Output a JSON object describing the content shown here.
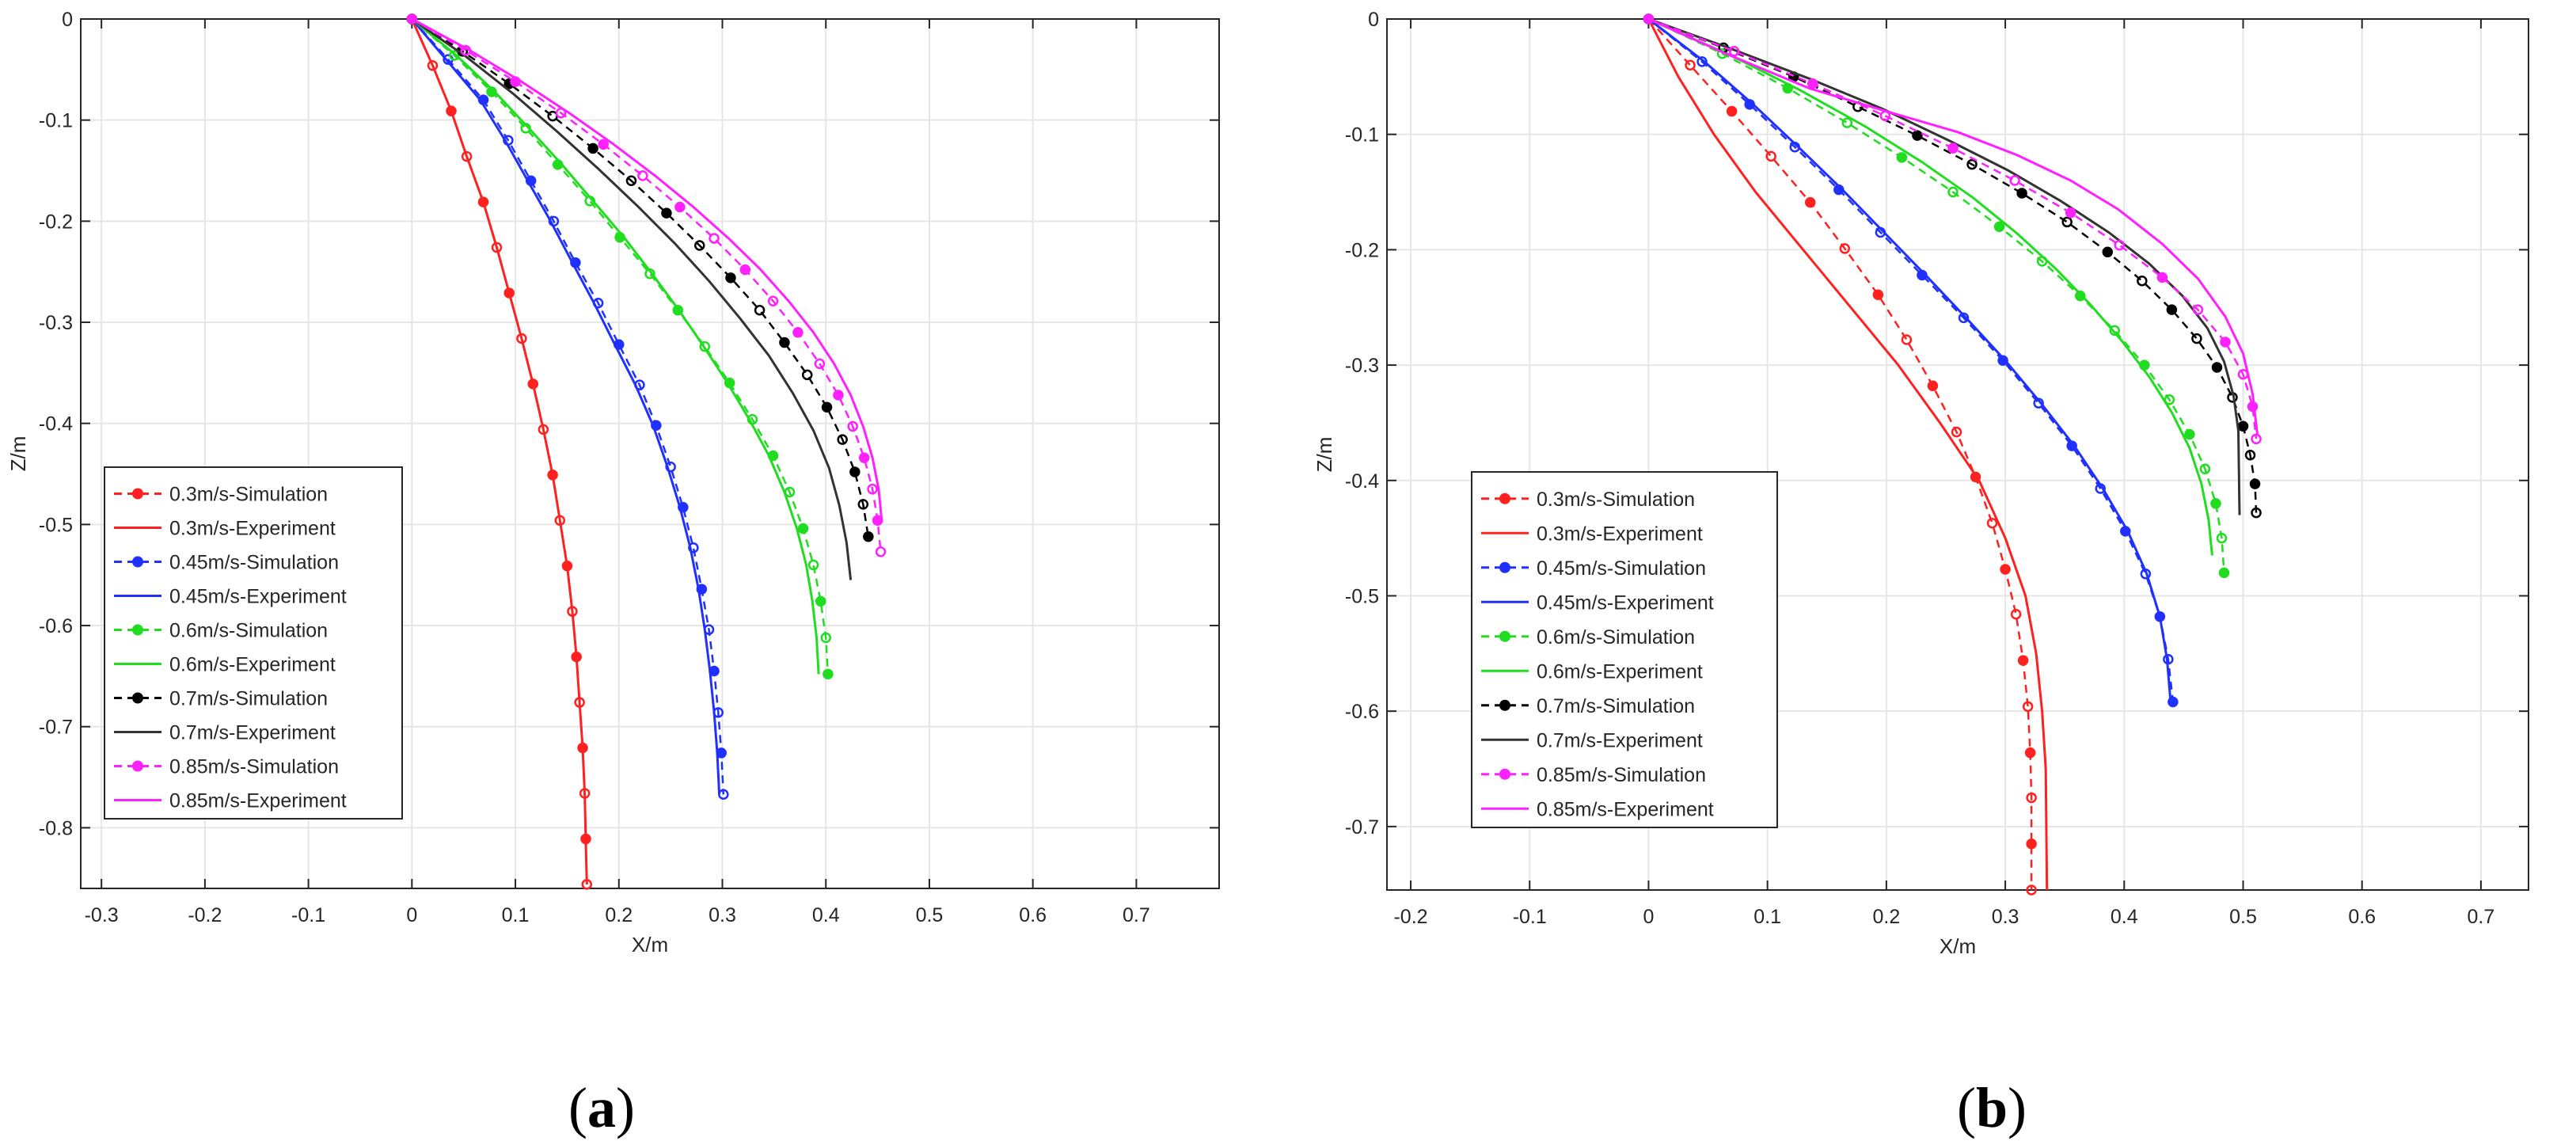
{
  "chart_data": [
    {
      "type": "line",
      "panel_label": "a",
      "xlabel": "X/m",
      "ylabel": "Z/m",
      "xlim": [
        -0.32,
        0.78
      ],
      "ylim": [
        -0.86,
        0
      ],
      "xticks": [
        -0.3,
        -0.2,
        -0.1,
        0,
        0.1,
        0.2,
        0.3,
        0.4,
        0.5,
        0.6,
        0.7
      ],
      "yticks": [
        0,
        -0.1,
        -0.2,
        -0.3,
        -0.4,
        -0.5,
        -0.6,
        -0.7,
        -0.8
      ],
      "grid": true,
      "legend_position": "bottom-left",
      "legend_order": [
        "sim_0.3",
        "exp_0.3",
        "sim_0.45",
        "exp_0.45",
        "sim_0.6",
        "exp_0.6",
        "sim_0.7",
        "exp_0.7",
        "sim_0.85",
        "exp_0.85"
      ],
      "series": [
        {
          "id": "sim_0.3",
          "name": "0.3m/s-Simulation",
          "color": "#ff2020",
          "style": "dashed-marker",
          "x": [
            0,
            0.02,
            0.038,
            0.053,
            0.069,
            0.082,
            0.094,
            0.106,
            0.117,
            0.127,
            0.136,
            0.143,
            0.15,
            0.155,
            0.159,
            0.162,
            0.165,
            0.167,
            0.168,
            0.169
          ],
          "y": [
            0,
            -0.046,
            -0.091,
            -0.136,
            -0.181,
            -0.226,
            -0.271,
            -0.316,
            -0.361,
            -0.406,
            -0.451,
            -0.496,
            -0.541,
            -0.586,
            -0.631,
            -0.676,
            -0.721,
            -0.766,
            -0.811,
            -0.856
          ]
        },
        {
          "id": "exp_0.3",
          "name": "0.3m/s-Experiment",
          "color": "#ff2020",
          "style": "solid",
          "x": [
            0,
            0.02,
            0.038,
            0.053,
            0.069,
            0.082,
            0.094,
            0.106,
            0.117,
            0.127,
            0.136,
            0.143,
            0.15,
            0.155,
            0.159,
            0.162,
            0.165,
            0.167,
            0.168,
            0.169
          ],
          "y": [
            0,
            -0.046,
            -0.091,
            -0.136,
            -0.181,
            -0.226,
            -0.271,
            -0.316,
            -0.361,
            -0.406,
            -0.451,
            -0.496,
            -0.541,
            -0.586,
            -0.631,
            -0.676,
            -0.721,
            -0.766,
            -0.811,
            -0.856
          ]
        },
        {
          "id": "sim_0.45",
          "name": "0.45m/s-Simulation",
          "color": "#2030ff",
          "style": "dashed-marker",
          "x": [
            0,
            0.035,
            0.069,
            0.093,
            0.115,
            0.137,
            0.158,
            0.18,
            0.2,
            0.22,
            0.236,
            0.25,
            0.262,
            0.272,
            0.28,
            0.287,
            0.292,
            0.296,
            0.299,
            0.301
          ],
          "y": [
            0,
            -0.04,
            -0.08,
            -0.12,
            -0.16,
            -0.2,
            -0.241,
            -0.281,
            -0.322,
            -0.362,
            -0.402,
            -0.443,
            -0.483,
            -0.523,
            -0.564,
            -0.604,
            -0.645,
            -0.686,
            -0.726,
            -0.767
          ]
        },
        {
          "id": "exp_0.45",
          "name": "0.45m/s-Experiment",
          "color": "#2030ff",
          "style": "solid",
          "x": [
            0,
            0.033,
            0.066,
            0.09,
            0.112,
            0.134,
            0.155,
            0.176,
            0.196,
            0.216,
            0.233,
            0.247,
            0.259,
            0.269,
            0.277,
            0.283,
            0.288,
            0.292,
            0.295,
            0.297
          ],
          "y": [
            0,
            -0.04,
            -0.08,
            -0.12,
            -0.16,
            -0.2,
            -0.241,
            -0.281,
            -0.322,
            -0.362,
            -0.402,
            -0.443,
            -0.483,
            -0.523,
            -0.564,
            -0.604,
            -0.645,
            -0.686,
            -0.726,
            -0.767
          ]
        },
        {
          "id": "sim_0.6",
          "name": "0.6m/s-Simulation",
          "color": "#20dd20",
          "style": "dashed-marker",
          "x": [
            0,
            0.041,
            0.077,
            0.11,
            0.141,
            0.172,
            0.201,
            0.23,
            0.257,
            0.283,
            0.307,
            0.329,
            0.349,
            0.365,
            0.378,
            0.388,
            0.395,
            0.4,
            0.402
          ],
          "y": [
            0,
            -0.036,
            -0.072,
            -0.108,
            -0.144,
            -0.18,
            -0.216,
            -0.252,
            -0.288,
            -0.324,
            -0.36,
            -0.396,
            -0.432,
            -0.468,
            -0.504,
            -0.54,
            -0.576,
            -0.612,
            -0.648
          ]
        },
        {
          "id": "exp_0.6",
          "name": "0.6m/s-Experiment",
          "color": "#20dd20",
          "style": "solid",
          "x": [
            0,
            0.043,
            0.08,
            0.113,
            0.145,
            0.175,
            0.205,
            0.232,
            0.258,
            0.282,
            0.305,
            0.326,
            0.345,
            0.36,
            0.372,
            0.381,
            0.387,
            0.391,
            0.393
          ],
          "y": [
            0,
            -0.036,
            -0.072,
            -0.108,
            -0.144,
            -0.18,
            -0.216,
            -0.252,
            -0.288,
            -0.324,
            -0.36,
            -0.396,
            -0.432,
            -0.468,
            -0.504,
            -0.54,
            -0.576,
            -0.612,
            -0.648
          ]
        },
        {
          "id": "sim_0.7",
          "name": "0.7m/s-Simulation",
          "color": "#000000",
          "style": "dashed-marker",
          "x": [
            0,
            0.049,
            0.094,
            0.136,
            0.175,
            0.212,
            0.246,
            0.278,
            0.308,
            0.336,
            0.36,
            0.382,
            0.401,
            0.416,
            0.428,
            0.436,
            0.441
          ],
          "y": [
            0,
            -0.032,
            -0.064,
            -0.096,
            -0.128,
            -0.16,
            -0.192,
            -0.224,
            -0.256,
            -0.288,
            -0.32,
            -0.352,
            -0.384,
            -0.416,
            -0.448,
            -0.48,
            -0.512
          ]
        },
        {
          "id": "exp_0.7",
          "name": "0.7m/s-Experiment",
          "color": "#333333",
          "style": "solid",
          "x": [
            0,
            0.052,
            0.098,
            0.14,
            0.18,
            0.218,
            0.254,
            0.287,
            0.317,
            0.345,
            0.368,
            0.388,
            0.403,
            0.413,
            0.42,
            0.424
          ],
          "y": [
            0,
            -0.037,
            -0.074,
            -0.111,
            -0.148,
            -0.185,
            -0.222,
            -0.259,
            -0.296,
            -0.333,
            -0.37,
            -0.407,
            -0.444,
            -0.481,
            -0.518,
            -0.555
          ]
        },
        {
          "id": "sim_0.85",
          "name": "0.85m/s-Simulation",
          "color": "#ff20ff",
          "style": "dashed-marker",
          "x": [
            0,
            0.052,
            0.1,
            0.144,
            0.185,
            0.223,
            0.259,
            0.292,
            0.322,
            0.349,
            0.373,
            0.394,
            0.412,
            0.426,
            0.437,
            0.445,
            0.45,
            0.453
          ],
          "y": [
            0,
            -0.031,
            -0.062,
            -0.093,
            -0.124,
            -0.155,
            -0.186,
            -0.217,
            -0.248,
            -0.279,
            -0.31,
            -0.341,
            -0.372,
            -0.403,
            -0.434,
            -0.465,
            -0.496,
            -0.527
          ]
        },
        {
          "id": "exp_0.85",
          "name": "0.85m/s-Experiment",
          "color": "#ff20ff",
          "style": "solid",
          "x": [
            0,
            0.056,
            0.106,
            0.152,
            0.195,
            0.235,
            0.272,
            0.306,
            0.337,
            0.364,
            0.388,
            0.408,
            0.424,
            0.436,
            0.445,
            0.451,
            0.454
          ],
          "y": [
            0,
            -0.031,
            -0.062,
            -0.093,
            -0.124,
            -0.155,
            -0.186,
            -0.217,
            -0.248,
            -0.279,
            -0.31,
            -0.341,
            -0.372,
            -0.403,
            -0.434,
            -0.465,
            -0.496
          ]
        }
      ]
    },
    {
      "type": "line",
      "panel_label": "b",
      "xlabel": "X/m",
      "ylabel": "Z/m",
      "xlim": [
        -0.22,
        0.74
      ],
      "ylim": [
        -0.755,
        0
      ],
      "xticks": [
        -0.2,
        -0.1,
        0,
        0.1,
        0.2,
        0.3,
        0.4,
        0.5,
        0.6,
        0.7
      ],
      "yticks": [
        0,
        -0.1,
        -0.2,
        -0.3,
        -0.4,
        -0.5,
        -0.6,
        -0.7
      ],
      "grid": true,
      "legend_position": "bottom-left",
      "legend_order": [
        "sim_0.3",
        "exp_0.3",
        "sim_0.45",
        "exp_0.45",
        "sim_0.6",
        "exp_0.6",
        "sim_0.7",
        "exp_0.7",
        "sim_0.85",
        "exp_0.85"
      ],
      "series": [
        {
          "id": "sim_0.3",
          "name": "0.3m/s-Simulation",
          "color": "#ff2020",
          "style": "dashed-marker",
          "x": [
            0,
            0.035,
            0.07,
            0.103,
            0.136,
            0.165,
            0.193,
            0.217,
            0.239,
            0.259,
            0.275,
            0.289,
            0.3,
            0.309,
            0.315,
            0.319,
            0.321,
            0.322,
            0.322,
            0.322
          ],
          "y": [
            0,
            -0.04,
            -0.08,
            -0.119,
            -0.159,
            -0.199,
            -0.239,
            -0.278,
            -0.318,
            -0.358,
            -0.397,
            -0.437,
            -0.477,
            -0.516,
            -0.556,
            -0.596,
            -0.636,
            -0.675,
            -0.715,
            -0.755
          ]
        },
        {
          "id": "exp_0.3",
          "name": "0.3m/s-Experiment",
          "color": "#ff2020",
          "style": "solid",
          "x": [
            0,
            0.025,
            0.055,
            0.09,
            0.13,
            0.17,
            0.21,
            0.245,
            0.278,
            0.3,
            0.317,
            0.326,
            0.331,
            0.334,
            0.335
          ],
          "y": [
            0,
            -0.05,
            -0.1,
            -0.15,
            -0.2,
            -0.25,
            -0.3,
            -0.35,
            -0.4,
            -0.45,
            -0.5,
            -0.55,
            -0.6,
            -0.65,
            -0.755
          ]
        },
        {
          "id": "sim_0.45",
          "name": "0.45m/s-Simulation",
          "color": "#2030ff",
          "style": "dashed-marker",
          "x": [
            0,
            0.045,
            0.085,
            0.123,
            0.16,
            0.195,
            0.23,
            0.265,
            0.298,
            0.328,
            0.356,
            0.38,
            0.401,
            0.418,
            0.43,
            0.437,
            0.441
          ],
          "y": [
            0,
            -0.037,
            -0.074,
            -0.111,
            -0.148,
            -0.185,
            -0.222,
            -0.259,
            -0.296,
            -0.333,
            -0.37,
            -0.407,
            -0.444,
            -0.481,
            -0.518,
            -0.555,
            -0.592
          ]
        },
        {
          "id": "exp_0.45",
          "name": "0.45m/s-Experiment",
          "color": "#2030ff",
          "style": "solid",
          "x": [
            0,
            0.047,
            0.088,
            0.126,
            0.163,
            0.198,
            0.233,
            0.267,
            0.3,
            0.33,
            0.358,
            0.382,
            0.403,
            0.419,
            0.43,
            0.436,
            0.439
          ],
          "y": [
            0,
            -0.037,
            -0.074,
            -0.111,
            -0.148,
            -0.185,
            -0.222,
            -0.259,
            -0.296,
            -0.333,
            -0.37,
            -0.407,
            -0.444,
            -0.481,
            -0.518,
            -0.555,
            -0.592
          ]
        },
        {
          "id": "sim_0.6",
          "name": "0.6m/s-Simulation",
          "color": "#20dd20",
          "style": "dashed-marker",
          "x": [
            0,
            0.062,
            0.117,
            0.167,
            0.213,
            0.256,
            0.295,
            0.331,
            0.363,
            0.392,
            0.417,
            0.438,
            0.455,
            0.468,
            0.477,
            0.482,
            0.484
          ],
          "y": [
            0,
            -0.03,
            -0.06,
            -0.09,
            -0.12,
            -0.15,
            -0.18,
            -0.21,
            -0.24,
            -0.27,
            -0.3,
            -0.33,
            -0.36,
            -0.39,
            -0.42,
            -0.45,
            -0.48
          ]
        },
        {
          "id": "exp_0.6",
          "name": "0.6m/s-Experiment",
          "color": "#20dd20",
          "style": "solid",
          "x": [
            0,
            0.068,
            0.128,
            0.182,
            0.23,
            0.273,
            0.31,
            0.343,
            0.372,
            0.398,
            0.421,
            0.44,
            0.455,
            0.465,
            0.471,
            0.474
          ],
          "y": [
            0,
            -0.031,
            -0.062,
            -0.093,
            -0.124,
            -0.155,
            -0.186,
            -0.217,
            -0.248,
            -0.279,
            -0.31,
            -0.341,
            -0.372,
            -0.403,
            -0.434,
            -0.465
          ]
        },
        {
          "id": "sim_0.7",
          "name": "0.7m/s-Simulation",
          "color": "#000000",
          "style": "dashed-marker",
          "x": [
            0,
            0.063,
            0.122,
            0.176,
            0.226,
            0.272,
            0.314,
            0.352,
            0.386,
            0.415,
            0.44,
            0.461,
            0.478,
            0.491,
            0.5,
            0.506,
            0.51,
            0.511
          ],
          "y": [
            0,
            -0.025,
            -0.05,
            -0.076,
            -0.101,
            -0.126,
            -0.151,
            -0.176,
            -0.202,
            -0.227,
            -0.252,
            -0.277,
            -0.302,
            -0.328,
            -0.353,
            -0.378,
            -0.403,
            -0.428
          ]
        },
        {
          "id": "exp_0.7",
          "name": "0.7m/s-Experiment",
          "color": "#333333",
          "style": "solid",
          "x": [
            0,
            0.07,
            0.136,
            0.197,
            0.252,
            0.302,
            0.347,
            0.387,
            0.421,
            0.449,
            0.47,
            0.484,
            0.492,
            0.496,
            0.497
          ],
          "y": [
            0,
            -0.026,
            -0.052,
            -0.078,
            -0.105,
            -0.131,
            -0.158,
            -0.185,
            -0.212,
            -0.24,
            -0.268,
            -0.297,
            -0.327,
            -0.357,
            -0.43
          ]
        },
        {
          "id": "sim_0.85",
          "name": "0.85m/s-Simulation",
          "color": "#ff20ff",
          "style": "dashed-marker",
          "x": [
            0,
            0.072,
            0.138,
            0.199,
            0.256,
            0.308,
            0.355,
            0.396,
            0.432,
            0.462,
            0.485,
            0.5,
            0.508,
            0.511
          ],
          "y": [
            0,
            -0.028,
            -0.056,
            -0.084,
            -0.112,
            -0.14,
            -0.168,
            -0.196,
            -0.224,
            -0.252,
            -0.28,
            -0.308,
            -0.336,
            -0.364
          ]
        },
        {
          "id": "exp_0.85",
          "name": "0.85m/s-Experiment",
          "color": "#ff20ff",
          "style": "solid",
          "x": [
            0,
            0.065,
            0.135,
            0.2,
            0.26,
            0.31,
            0.355,
            0.395,
            0.432,
            0.462,
            0.485,
            0.5,
            0.508,
            0.512
          ],
          "y": [
            0,
            -0.03,
            -0.06,
            -0.08,
            -0.098,
            -0.118,
            -0.14,
            -0.165,
            -0.195,
            -0.225,
            -0.258,
            -0.29,
            -0.325,
            -0.36
          ]
        }
      ]
    }
  ]
}
